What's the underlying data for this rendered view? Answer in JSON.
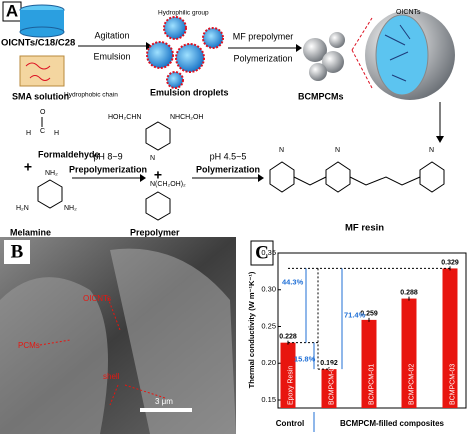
{
  "panels": {
    "a": "A",
    "b": "B",
    "c": "C"
  },
  "scheme": {
    "core": "OICNTs/C18/C28",
    "sma": "SMA solution",
    "hydrophobic": "Hydrophobic chain",
    "hydrophilic": "Hydrophilic group",
    "step1_top": "Agitation",
    "step1_bottom": "Emulsion",
    "droplets": "Emulsion droplets",
    "step2_top": "MF prepolymer",
    "step2_bottom": "Polymerization",
    "capsules": "BCMPCMs",
    "oicnts": "OICNTs",
    "formaldehyde": "Formaldehyde",
    "melamine": "Melamine",
    "plus": "+",
    "step3_top": "pH 8~9",
    "step3_bottom": "Prepolymerization",
    "step4_top": "pH 4.5~5",
    "step4_bottom": "Polymerization",
    "prepolymer": "Prepolymer",
    "resin": "MF resin",
    "atoms": [
      "O",
      "H",
      "C",
      "NH₂",
      "N",
      "H₂N",
      "HOH₂CHN",
      "NHCH₂OH",
      "N(CH₂OH)₂"
    ]
  },
  "sem": {
    "label1": "OICNTs",
    "label2": "PCMs",
    "label3": "shell",
    "scale": "3 μm"
  },
  "chart_data": {
    "type": "bar",
    "ylabel": "Thermal conductivity (W m⁻¹K⁻¹)",
    "categories": [
      "Epoxy Resin",
      "BCMPCM-00",
      "BCMPCM-01",
      "BCMPCM-02",
      "BCMPCM-03"
    ],
    "values": [
      0.228,
      0.192,
      0.259,
      0.288,
      0.329
    ],
    "color": "#e8150f",
    "ylim": [
      0.15,
      0.35
    ],
    "yticks": [
      {
        "value": 0.15,
        "label": "0.15"
      },
      {
        "value": 0.2,
        "label": "0.20"
      },
      {
        "value": 0.25,
        "label": "0.25"
      },
      {
        "value": 0.3,
        "label": "0.30"
      },
      {
        "value": 0.35,
        "label": "0.35"
      }
    ],
    "groups": [
      "Control",
      "BCMPCM-filled composites"
    ],
    "annotations": [
      "44.3%",
      "15.8%",
      "71.4%"
    ]
  }
}
